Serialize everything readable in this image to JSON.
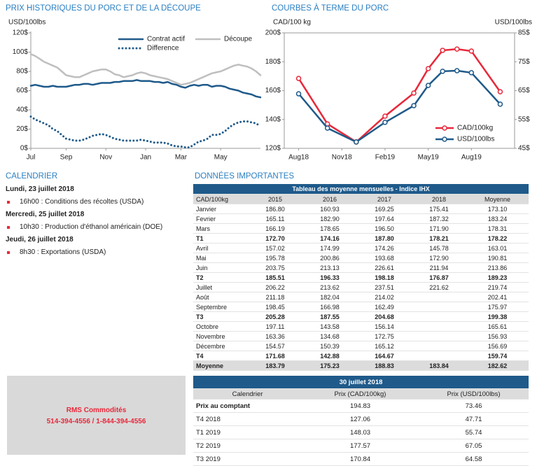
{
  "chart_data": [
    {
      "type": "line",
      "title": "PRIX HISTORIQUES DU PORC ET DE LA DÉCOUPE",
      "y_label": "USD/100lbs",
      "categories": [
        "Jul",
        null,
        null,
        null,
        null,
        null,
        null,
        null,
        "Sep",
        null,
        null,
        null,
        null,
        null,
        null,
        null,
        null,
        "Nov",
        null,
        null,
        null,
        null,
        null,
        null,
        null,
        null,
        "Jan",
        null,
        null,
        null,
        null,
        null,
        null,
        null,
        "Mar",
        null,
        null,
        null,
        null,
        null,
        null,
        null,
        null,
        "May",
        null,
        null,
        null,
        null,
        null,
        null,
        null,
        null,
        null
      ],
      "series": [
        {
          "name": "Contrat actif",
          "color": "#1f5a8a",
          "line_style": "solid",
          "values": [
            65,
            66,
            65,
            64,
            64,
            65,
            64,
            64,
            64,
            65,
            66,
            66,
            67,
            67,
            66,
            67,
            68,
            68,
            68,
            69,
            69,
            70,
            70,
            70,
            71,
            70,
            70,
            70,
            69,
            69,
            68,
            69,
            67,
            66,
            64,
            63,
            65,
            66,
            65,
            66,
            66,
            64,
            65,
            65,
            64,
            62,
            61,
            60,
            58,
            57,
            56,
            54,
            53
          ]
        },
        {
          "name": "Découpe",
          "color": "#bfbfbf",
          "line_style": "solid",
          "values": [
            98,
            96,
            93,
            90,
            88,
            86,
            84,
            80,
            76,
            75,
            74,
            74,
            76,
            78,
            80,
            81,
            82,
            82,
            80,
            77,
            76,
            74,
            75,
            76,
            78,
            79,
            78,
            76,
            75,
            74,
            73,
            72,
            70,
            68,
            66,
            67,
            68,
            70,
            72,
            74,
            76,
            78,
            79,
            80,
            82,
            84,
            86,
            87,
            86,
            85,
            83,
            80,
            76
          ]
        },
        {
          "name": "Difference",
          "color": "#1f5a8a",
          "line_style": "dotted",
          "values": [
            33,
            30,
            28,
            26,
            24,
            20,
            18,
            14,
            10,
            9,
            8,
            8,
            9,
            11,
            13,
            14,
            15,
            14,
            12,
            10,
            9,
            8,
            8,
            8,
            8,
            9,
            8,
            7,
            6,
            6,
            6,
            5,
            3,
            2,
            2,
            1,
            1,
            4,
            7,
            8,
            10,
            14,
            14,
            15,
            18,
            22,
            25,
            27,
            28,
            28,
            27,
            26,
            23
          ]
        }
      ],
      "ylim": [
        0,
        120
      ],
      "yticks": [
        {
          "value": 0,
          "label": "0$"
        },
        {
          "value": 20,
          "label": "20$"
        },
        {
          "value": 40,
          "label": "40$"
        },
        {
          "value": 60,
          "label": "60$"
        },
        {
          "value": 80,
          "label": "80$"
        },
        {
          "value": 100,
          "label": "100$"
        },
        {
          "value": 120,
          "label": "120$"
        }
      ],
      "legend": "upper right"
    },
    {
      "type": "line",
      "title": "COURBES À TERME DU PORC",
      "y_label": "CAD/100 kg",
      "y2_label": "USD/100lbs",
      "x": [
        "2018-08",
        "2018-10",
        "2018-12",
        "2019-02",
        "2019-04",
        "2019-05",
        "2019-06",
        "2019-07",
        "2019-08",
        "2019-10"
      ],
      "xlim": [
        "2018-07",
        "2019-11"
      ],
      "xticks": [
        {
          "value": "2018-08",
          "label": "Aug18"
        },
        {
          "value": "2018-11",
          "label": "Nov18"
        },
        {
          "value": "2019-02",
          "label": "Feb19"
        },
        {
          "value": "2019-05",
          "label": "May19"
        },
        {
          "value": "2019-08",
          "label": "Aug19"
        }
      ],
      "series": [
        {
          "name": "CAD/100kg",
          "color": "#e8283a",
          "values": [
            168.4,
            136.9,
            124.4,
            142.3,
            158.3,
            175.2,
            187.9,
            188.8,
            187.4,
            159.2
          ]
        },
        {
          "name": "USD/100lbs",
          "color": "#1f5a8a",
          "axis": "y2",
          "values": [
            63.9,
            52.0,
            47.2,
            54.0,
            59.8,
            66.8,
            71.7,
            71.9,
            71.2,
            60.3
          ]
        }
      ],
      "ylim": [
        120,
        200
      ],
      "yticks": [
        {
          "value": 120,
          "label": "120$"
        },
        {
          "value": 140,
          "label": "140$"
        },
        {
          "value": 160,
          "label": "160$"
        },
        {
          "value": 180,
          "label": "180$"
        },
        {
          "value": 200,
          "label": "200$"
        }
      ],
      "y2lim": [
        45,
        85
      ],
      "y2ticks": [
        {
          "value": 45,
          "label": "45$"
        },
        {
          "value": 55,
          "label": "55$"
        },
        {
          "value": 65,
          "label": "65$"
        },
        {
          "value": 75,
          "label": "75$"
        },
        {
          "value": 85,
          "label": "85$"
        }
      ],
      "legend": "lower right"
    }
  ],
  "calendar": {
    "title": "CALENDRIER",
    "days": [
      {
        "date": "Lundi, 23 juillet 2018",
        "events": [
          "16h00 : Conditions des récoltes (USDA)"
        ]
      },
      {
        "date": "Mercredi, 25 juillet 2018",
        "events": [
          "10h30 : Production d'éthanol américain (DOE)"
        ]
      },
      {
        "date": "Jeudi, 26 juillet 2018",
        "events": [
          "8h30 : Exportations (USDA)"
        ]
      }
    ]
  },
  "important_data": {
    "title": "DONNÉES IMPORTANTES",
    "monthly_table": {
      "caption": "Tableau des moyenne mensuelles - Indice IHX",
      "header": [
        "CAD/100kg",
        "2015",
        "2016",
        "2017",
        "2018",
        "Moyenne"
      ],
      "rows": [
        [
          "Janvier",
          "186.80",
          "160.93",
          "169.25",
          "175.41",
          "173.10"
        ],
        [
          "Fevrier",
          "165.11",
          "182.90",
          "197.64",
          "187.32",
          "183.24"
        ],
        [
          "Mars",
          "166.19",
          "178.65",
          "196.50",
          "171.90",
          "178.31"
        ],
        [
          "T1",
          "172.70",
          "174.16",
          "187.80",
          "178.21",
          "178.22"
        ],
        [
          "Avril",
          "157.02",
          "174.99",
          "174.26",
          "145.78",
          "163.01"
        ],
        [
          "Mai",
          "195.78",
          "200.86",
          "193.68",
          "172.90",
          "190.81"
        ],
        [
          "Juin",
          "203.75",
          "213.13",
          "226.61",
          "211.94",
          "213.86"
        ],
        [
          "T2",
          "185.51",
          "196.33",
          "198.18",
          "176.87",
          "189.23"
        ],
        [
          "Juillet",
          "206.22",
          "213.62",
          "237.51",
          "221.62",
          "219.74"
        ],
        [
          "Août",
          "211.18",
          "182.04",
          "214.02",
          null,
          "202.41"
        ],
        [
          "Septembre",
          "198.45",
          "166.98",
          "162.49",
          null,
          "175.97"
        ],
        [
          "T3",
          "205.28",
          "187.55",
          "204.68",
          null,
          "199.38"
        ],
        [
          "Octobre",
          "197.11",
          "143.58",
          "156.14",
          null,
          "165.61"
        ],
        [
          "Novembre",
          "163.36",
          "134.68",
          "172.75",
          null,
          "156.93"
        ],
        [
          "Décembre",
          "154.57",
          "150.39",
          "165.12",
          null,
          "156.69"
        ],
        [
          "T4",
          "171.68",
          "142.88",
          "164.67",
          null,
          "159.74"
        ],
        [
          "Moyenne",
          "183.79",
          "175.23",
          "188.83",
          "183.84",
          "182.62"
        ]
      ]
    },
    "spot_table": {
      "caption": "30 juillet 2018",
      "header": [
        "Calendrier",
        "Prix (CAD/100kg)",
        "Prix (USD/100lbs)"
      ],
      "rows": [
        [
          "Prix au comptant",
          "194.83",
          "73.46"
        ],
        [
          "T4 2018",
          "127.06",
          "47.71"
        ],
        [
          "T1 2019",
          "148.03",
          "55.74"
        ],
        [
          "T2 2019",
          "177.57",
          "67.05"
        ],
        [
          "T3 2019",
          "170.84",
          "64.58"
        ]
      ]
    }
  },
  "contact": {
    "name": "RMS Commodités",
    "phones": "514-394-4556 / 1-844-394-4556"
  }
}
